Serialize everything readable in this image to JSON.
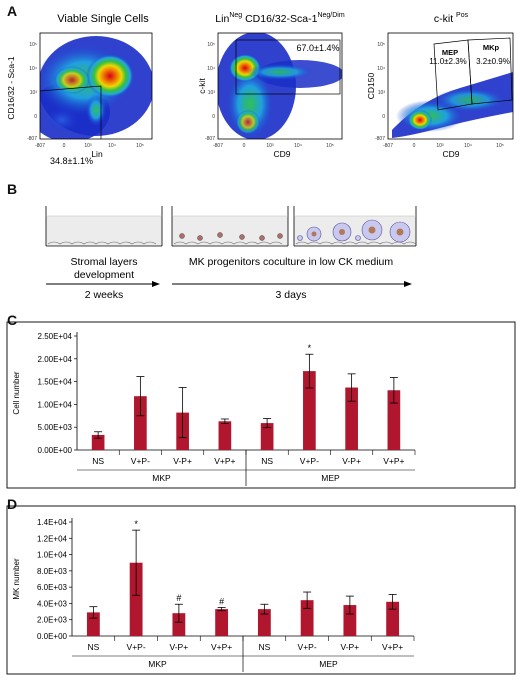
{
  "panel_letters": {
    "a": "A",
    "b": "B",
    "c": "C",
    "d": "D"
  },
  "flow": {
    "p1": {
      "title": "Viable Single Cells",
      "ylabel": "CD16/32 - Sca-1",
      "xlabel": "Lin",
      "gate_pct": "34.8±1.1%",
      "y_ticks": [
        "10⁵",
        "10⁴",
        "10³",
        "0",
        "-807"
      ],
      "x_ticks": [
        "-807",
        "0",
        "10³",
        "10⁴",
        "10⁵"
      ]
    },
    "p2": {
      "title_lin": "Lin",
      "title_neg": "Neg",
      "title_mid": " CD16/32-Sca-1",
      "title_negdim": "Neg/Dim",
      "ylabel": "c-kit",
      "xlabel": "CD9",
      "gate_pct": "67.0±1.4%",
      "y_ticks": [
        "10⁵",
        "10⁴",
        "10³",
        "0",
        "-807"
      ],
      "x_ticks": [
        "-807",
        "0",
        "10³",
        "10⁴",
        "10⁵"
      ]
    },
    "p3": {
      "title_main": "c-kit ",
      "title_pos": "Pos",
      "ylabel": "CD150",
      "xlabel": "CD9",
      "mep_label": "MEP",
      "mep_pct": "11.0±2.3%",
      "mkp_label": "MKp",
      "mkp_pct": "3.2±0.9%",
      "y_ticks": [
        "10⁵",
        "10⁴",
        "10³",
        "0",
        "-807"
      ],
      "x_ticks": [
        "-807",
        "0",
        "10³",
        "10⁴",
        "10⁵"
      ]
    }
  },
  "schematic": {
    "label_stromal_1": "Stromal layers",
    "label_stromal_2": "development",
    "label_mk": "MK progenitors coculture in low CK medium",
    "time_1": "2 weeks",
    "time_2": "3 days"
  },
  "chart_data": [
    {
      "type": "bar",
      "ylabel": "Cell number",
      "ylim": [
        0,
        25000
      ],
      "y_tick_labels": [
        "0.00E+00",
        "5.00E+03",
        "1.00E+04",
        "1.50E+04",
        "2.00E+04",
        "2.50E+04"
      ],
      "y_tick_values": [
        0,
        5000,
        10000,
        15000,
        20000,
        25000
      ],
      "categories": [
        "NS",
        "V+P-",
        "V-P+",
        "V+P+",
        "NS",
        "V+P-",
        "V-P+",
        "V+P+"
      ],
      "groups": [
        {
          "name": "MKP",
          "from": 0,
          "to": 3
        },
        {
          "name": "MEP",
          "from": 4,
          "to": 7
        }
      ],
      "values": [
        3300,
        11800,
        8200,
        6300,
        5900,
        17300,
        13700,
        13100
      ],
      "errors": [
        700,
        4300,
        5500,
        500,
        1000,
        3700,
        3000,
        2800
      ],
      "markers": [
        "",
        "",
        "",
        "",
        "",
        "*",
        "",
        ""
      ],
      "bar_color": "#b0172f"
    },
    {
      "type": "bar",
      "ylabel": "MK number",
      "ylim": [
        0,
        14000
      ],
      "y_tick_labels": [
        "0.0E+00",
        "2.0E+03",
        "4.0E+03",
        "6.0E+03",
        "8.0E+03",
        "1.0E+04",
        "1.2E+04",
        "1.4E+04"
      ],
      "y_tick_values": [
        0,
        2000,
        4000,
        6000,
        8000,
        10000,
        12000,
        14000
      ],
      "categories": [
        "NS",
        "V+P-",
        "V-P+",
        "V+P+",
        "NS",
        "V+P-",
        "V-P+",
        "V+P+"
      ],
      "groups": [
        {
          "name": "MKP",
          "from": 0,
          "to": 3
        },
        {
          "name": "MEP",
          "from": 4,
          "to": 7
        }
      ],
      "values": [
        2900,
        9000,
        2800,
        3300,
        3300,
        4400,
        3800,
        4200
      ],
      "errors": [
        700,
        4000,
        1100,
        200,
        600,
        1000,
        1100,
        900
      ],
      "markers": [
        "",
        "*",
        "#",
        "#",
        "",
        "",
        "",
        ""
      ],
      "bar_color": "#b0172f"
    }
  ]
}
